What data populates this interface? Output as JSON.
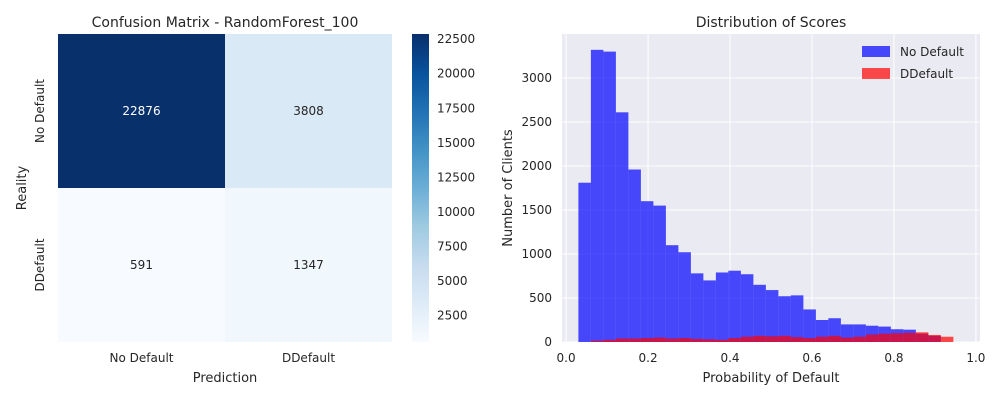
{
  "chart_data": [
    {
      "type": "heatmap",
      "title": "Confusion Matrix - RandomForest_100",
      "xlabel": "Prediction",
      "ylabel": "Reality",
      "x_categories": [
        "No Default",
        "DDefault"
      ],
      "y_categories": [
        "No Default",
        "DDefault"
      ],
      "values": [
        [
          22876,
          3808
        ],
        [
          591,
          1347
        ]
      ],
      "colormap": "Blues",
      "colorbar": {
        "min": 591,
        "max": 22876,
        "ticks": [
          2500,
          5000,
          7500,
          10000,
          12500,
          15000,
          17500,
          20000,
          22500
        ]
      }
    },
    {
      "type": "histogram",
      "title": "Distribution of Scores",
      "xlabel": "Probability of Default",
      "ylabel": "Number of Clients",
      "xlim": [
        -0.01,
        1.01
      ],
      "ylim": [
        0,
        3500
      ],
      "x_ticks": [
        0.0,
        0.2,
        0.4,
        0.6,
        0.8,
        1.0
      ],
      "y_ticks": [
        0,
        500,
        1000,
        1500,
        2000,
        2500,
        3000
      ],
      "grid": true,
      "legend_position": "top-right",
      "bins": {
        "start": 0.03,
        "width": 0.0305,
        "count": 30
      },
      "series": [
        {
          "name": "No Default",
          "color": "#0000ff",
          "opacity": 0.7,
          "values": [
            1810,
            3320,
            3300,
            2610,
            1960,
            1600,
            1550,
            1100,
            1020,
            780,
            700,
            790,
            810,
            770,
            650,
            590,
            520,
            530,
            370,
            250,
            270,
            200,
            200,
            185,
            175,
            145,
            140,
            95,
            70,
            0
          ]
        },
        {
          "name": "DDefault",
          "color": "#ff0000",
          "opacity": 0.7,
          "values": [
            0,
            15,
            25,
            40,
            40,
            45,
            50,
            40,
            45,
            35,
            30,
            25,
            45,
            60,
            70,
            65,
            70,
            55,
            45,
            60,
            70,
            50,
            60,
            85,
            95,
            100,
            105,
            110,
            80,
            60
          ]
        }
      ]
    }
  ]
}
